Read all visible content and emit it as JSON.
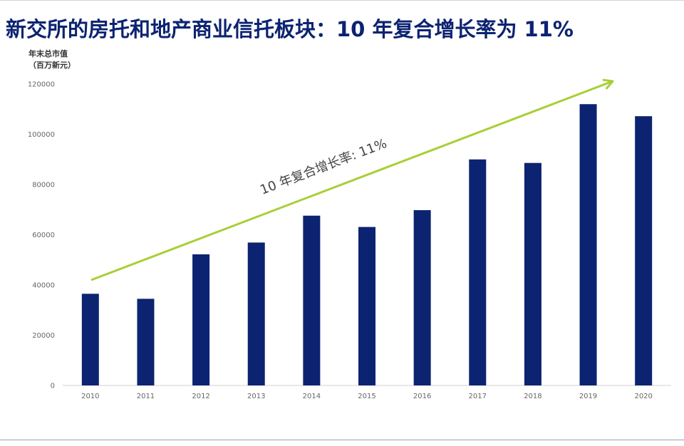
{
  "page": {
    "title": "新交所的房托和地产商业信托板块：10 年复合增长率为 11%"
  },
  "chart_data": {
    "type": "bar",
    "ylabel_line1": "年末总市值",
    "ylabel_line2": "（百万新元）",
    "categories": [
      "2010",
      "2011",
      "2012",
      "2013",
      "2014",
      "2015",
      "2016",
      "2017",
      "2018",
      "2019",
      "2020"
    ],
    "values": [
      36500,
      34500,
      52200,
      56900,
      67600,
      63100,
      69800,
      90000,
      88600,
      112000,
      107200
    ],
    "ylim": [
      0,
      120000
    ],
    "yticks": [
      0,
      20000,
      40000,
      60000,
      80000,
      100000,
      120000
    ],
    "annotation": "10 年复合增长率: 11%",
    "bar_color": "#0c2371",
    "trend_color": "#a8cf38",
    "grid": false,
    "legend": "none"
  }
}
